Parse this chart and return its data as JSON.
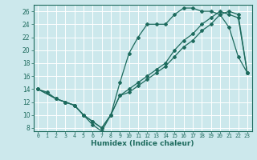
{
  "xlabel": "Humidex (Indice chaleur)",
  "bg_color": "#cce8ec",
  "grid_color": "#ffffff",
  "line_color": "#1e6b5e",
  "xlim": [
    -0.5,
    23.5
  ],
  "ylim": [
    7.5,
    27
  ],
  "yticks": [
    8,
    10,
    12,
    14,
    16,
    18,
    20,
    22,
    24,
    26
  ],
  "xticks": [
    0,
    1,
    2,
    3,
    4,
    5,
    6,
    7,
    8,
    9,
    10,
    11,
    12,
    13,
    14,
    15,
    16,
    17,
    18,
    19,
    20,
    21,
    22,
    23
  ],
  "line1_x": [
    0,
    1,
    2,
    3,
    4,
    5,
    6,
    7,
    8,
    9,
    10,
    11,
    12,
    13,
    14,
    15,
    16,
    17,
    18,
    19,
    20,
    21,
    22,
    23
  ],
  "line1_y": [
    14,
    13.5,
    12.5,
    12,
    11.5,
    10,
    8.5,
    7.5,
    10,
    15,
    19.5,
    22,
    24,
    24,
    24,
    25.5,
    26.5,
    26.5,
    26,
    26,
    25.5,
    23.5,
    19,
    16.5
  ],
  "line2_x": [
    0,
    2,
    3,
    4,
    5,
    6,
    7,
    8,
    9,
    10,
    11,
    12,
    13,
    14,
    15,
    16,
    17,
    18,
    19,
    20,
    21,
    22,
    23
  ],
  "line2_y": [
    14,
    12.5,
    12,
    11.5,
    10,
    9,
    8,
    10,
    13,
    14,
    15,
    16,
    17,
    18,
    20,
    21.5,
    22.5,
    24,
    25,
    26,
    25.5,
    25,
    16.5
  ],
  "line3_x": [
    0,
    2,
    3,
    4,
    5,
    6,
    7,
    8,
    9,
    10,
    11,
    12,
    13,
    14,
    15,
    16,
    17,
    18,
    19,
    20,
    21,
    22,
    23
  ],
  "line3_y": [
    14,
    12.5,
    12,
    11.5,
    10,
    9,
    8,
    10,
    13,
    13.5,
    14.5,
    15.5,
    16.5,
    17.5,
    19,
    20.5,
    21.5,
    23,
    24,
    25.5,
    26,
    25.5,
    16.5
  ]
}
